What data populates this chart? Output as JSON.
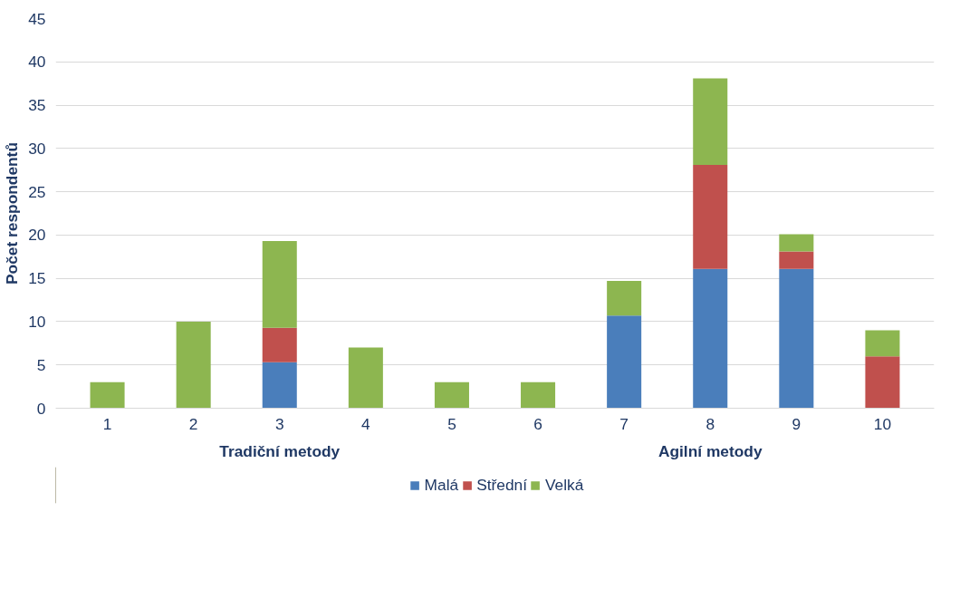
{
  "chart_data": {
    "type": "bar",
    "stacked": true,
    "ylabel": "Počet respondentů",
    "categories": [
      "1",
      "2",
      "3",
      "4",
      "5",
      "6",
      "7",
      "8",
      "9",
      "10"
    ],
    "series": [
      {
        "name": "Malá",
        "color": "#4a7ebb",
        "values": [
          0,
          0,
          5.3,
          0,
          0,
          0,
          10.7,
          16.1,
          16.1,
          0
        ]
      },
      {
        "name": "Střední",
        "color": "#c0504d",
        "values": [
          0,
          0,
          4,
          0,
          0,
          0,
          0,
          12,
          2,
          6
        ]
      },
      {
        "name": "Velká",
        "color": "#8db650",
        "values": [
          3,
          10,
          10,
          7,
          3,
          3,
          4,
          10,
          2,
          3
        ]
      }
    ],
    "ylim": [
      0,
      45
    ],
    "yticks": [
      0,
      5,
      10,
      15,
      20,
      25,
      30,
      35,
      40,
      45
    ],
    "grid": "y",
    "legend": "bottom",
    "annotations": [
      "Tradiční metody",
      "Agilní metody"
    ]
  }
}
